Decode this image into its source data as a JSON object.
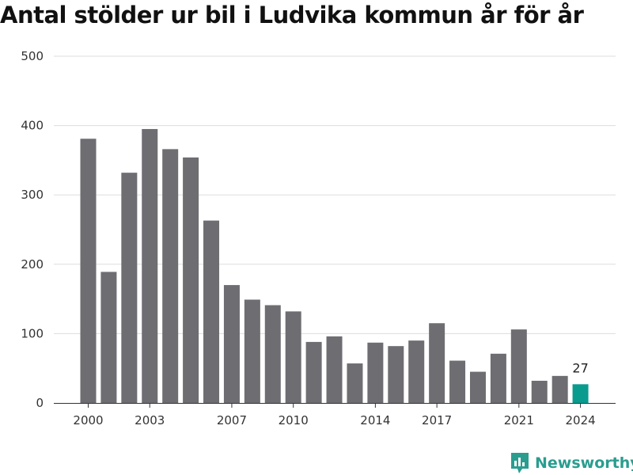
{
  "chart_data": {
    "type": "bar",
    "title": "Antal stölder ur bil i Ludvika kommun år för år",
    "xlabel": "",
    "ylabel": "",
    "categories": [
      "2000",
      "2001",
      "2002",
      "2003",
      "2004",
      "2005",
      "2006",
      "2007",
      "2008",
      "2009",
      "2010",
      "2011",
      "2012",
      "2013",
      "2014",
      "2015",
      "2016",
      "2017",
      "2018",
      "2019",
      "2020",
      "2021",
      "2022",
      "2023",
      "2024"
    ],
    "values": [
      381,
      189,
      332,
      395,
      366,
      354,
      263,
      170,
      149,
      141,
      132,
      88,
      96,
      57,
      87,
      82,
      90,
      115,
      61,
      45,
      71,
      106,
      32,
      39,
      27
    ],
    "x_tick_labels": [
      "2000",
      "2003",
      "2007",
      "2010",
      "2014",
      "2017",
      "2021",
      "2024"
    ],
    "y_ticks": [
      0,
      100,
      200,
      300,
      400,
      500
    ],
    "ylim": [
      0,
      500
    ],
    "grid": true,
    "bar_color": "#6e6d72",
    "highlight_color": "#0a9b8f",
    "highlight_index": 24,
    "highlight_label": "27"
  },
  "brand": {
    "name": "Newsworthy",
    "color": "#2a9d8f",
    "icon": "newsworthy-logo-icon"
  }
}
